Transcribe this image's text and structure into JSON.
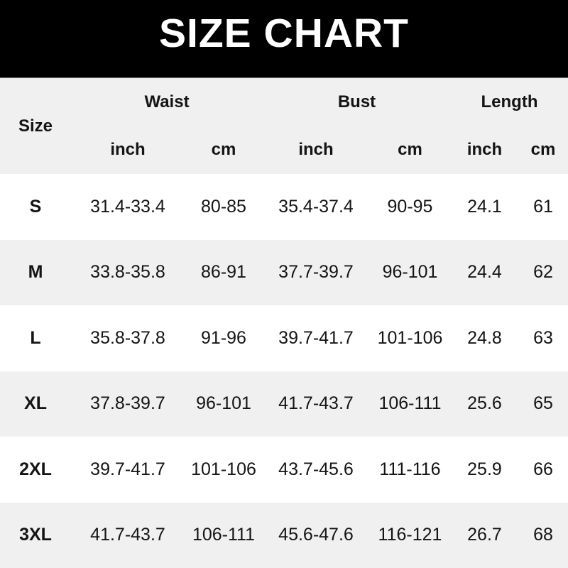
{
  "title": "SIZE CHART",
  "colors": {
    "banner_bg": "#000000",
    "banner_text": "#ffffff",
    "stripe_bg": "#f0f0f0",
    "row_bg": "#ffffff",
    "text": "#141414"
  },
  "chart_data": {
    "type": "table",
    "title": "SIZE CHART",
    "corner_label": "Size",
    "column_groups": [
      {
        "label": "Waist",
        "units": [
          "inch",
          "cm"
        ]
      },
      {
        "label": "Bust",
        "units": [
          "inch",
          "cm"
        ]
      },
      {
        "label": "Length",
        "units": [
          "inch",
          "cm"
        ]
      }
    ],
    "rows": [
      {
        "size": "S",
        "waist_inch": "31.4-33.4",
        "waist_cm": "80-85",
        "bust_inch": "35.4-37.4",
        "bust_cm": "90-95",
        "length_inch": "24.1",
        "length_cm": "61"
      },
      {
        "size": "M",
        "waist_inch": "33.8-35.8",
        "waist_cm": "86-91",
        "bust_inch": "37.7-39.7",
        "bust_cm": "96-101",
        "length_inch": "24.4",
        "length_cm": "62"
      },
      {
        "size": "L",
        "waist_inch": "35.8-37.8",
        "waist_cm": "91-96",
        "bust_inch": "39.7-41.7",
        "bust_cm": "101-106",
        "length_inch": "24.8",
        "length_cm": "63"
      },
      {
        "size": "XL",
        "waist_inch": "37.8-39.7",
        "waist_cm": "96-101",
        "bust_inch": "41.7-43.7",
        "bust_cm": "106-111",
        "length_inch": "25.6",
        "length_cm": "65"
      },
      {
        "size": "2XL",
        "waist_inch": "39.7-41.7",
        "waist_cm": "101-106",
        "bust_inch": "43.7-45.6",
        "bust_cm": "111-116",
        "length_inch": "25.9",
        "length_cm": "66"
      },
      {
        "size": "3XL",
        "waist_inch": "41.7-43.7",
        "waist_cm": "106-111",
        "bust_inch": "45.6-47.6",
        "bust_cm": "116-121",
        "length_inch": "26.7",
        "length_cm": "68"
      }
    ]
  }
}
